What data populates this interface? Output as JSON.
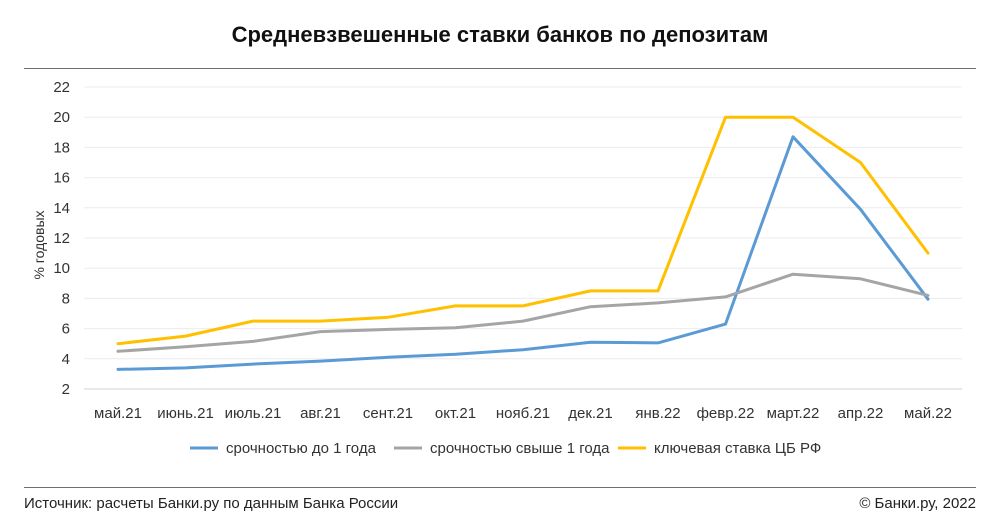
{
  "header": {
    "title": "Средневзвешенные ставки банков по депозитам"
  },
  "footer": {
    "source": "Источник: расчеты Банки.ру по данным Банка России",
    "copyright": "© Банки.ру, 2022"
  },
  "chart_data": {
    "type": "line",
    "title": "Средневзвешенные ставки банков по депозитам",
    "xlabel": "",
    "ylabel": "% годовых",
    "ylim": [
      2,
      22
    ],
    "yticks": [
      2,
      4,
      6,
      8,
      10,
      12,
      14,
      16,
      18,
      20,
      22
    ],
    "grid": true,
    "legend_position": "bottom",
    "categories": [
      "май.21",
      "июнь.21",
      "июль.21",
      "авг.21",
      "сент.21",
      "окт.21",
      "нояб.21",
      "дек.21",
      "янв.22",
      "февр.22",
      "март.22",
      "апр.22",
      "май.22"
    ],
    "series": [
      {
        "name": "срочностью до 1 года",
        "color": "#5b9bd5",
        "values": [
          3.3,
          3.4,
          3.65,
          3.85,
          4.1,
          4.3,
          4.6,
          5.1,
          5.05,
          6.3,
          18.7,
          13.9,
          7.95
        ]
      },
      {
        "name": "срочностью свыше 1 года",
        "color": "#a5a5a5",
        "values": [
          4.5,
          4.8,
          5.15,
          5.8,
          5.95,
          6.05,
          6.5,
          7.45,
          7.7,
          8.1,
          9.6,
          9.3,
          8.2
        ]
      },
      {
        "name": "ключевая ставка ЦБ РФ",
        "color": "#ffc000",
        "values": [
          5.0,
          5.5,
          6.5,
          6.5,
          6.75,
          7.5,
          7.5,
          8.5,
          8.5,
          20.0,
          20.0,
          17.0,
          11.0
        ]
      }
    ]
  }
}
